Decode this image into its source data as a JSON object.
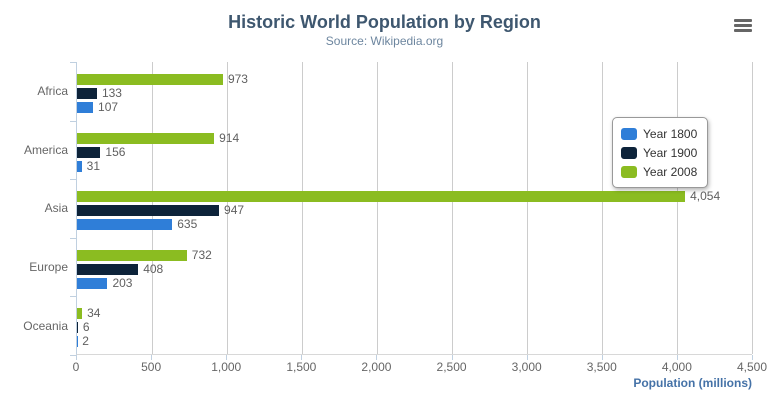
{
  "header": {
    "title": "Historic World Population by Region",
    "subtitle": "Source: Wikipedia.org"
  },
  "export_menu": {
    "icon": "hamburger-menu-icon"
  },
  "chart_data": {
    "type": "bar",
    "orientation": "horizontal",
    "title": "Historic World Population by Region",
    "subtitle": "Source: Wikipedia.org",
    "categories": [
      "Africa",
      "America",
      "Asia",
      "Europe",
      "Oceania"
    ],
    "series": [
      {
        "name": "Year 1800",
        "color": "#2f7ed8",
        "values": [
          107,
          31,
          635,
          203,
          2
        ]
      },
      {
        "name": "Year 1900",
        "color": "#0d233a",
        "values": [
          133,
          156,
          947,
          408,
          6
        ]
      },
      {
        "name": "Year 2008",
        "color": "#8bbc21",
        "values": [
          973,
          914,
          4054,
          732,
          34
        ]
      }
    ],
    "bar_display_order_top_to_bottom": [
      2,
      1,
      0
    ],
    "xlabel": "Population (millions)",
    "xlim": [
      0,
      4500
    ],
    "x_tick_step": 500,
    "x_tick_labels": [
      "0",
      "500",
      "1,000",
      "1,500",
      "2,000",
      "2,500",
      "3,000",
      "3,500",
      "4,000",
      "4,500"
    ],
    "grid": true,
    "data_labels": true,
    "legend_position": "middle-right"
  },
  "colors": {
    "title": "#3e576f",
    "subtitle": "#6d869f",
    "axis_label": "#666666",
    "data_label": "#606060",
    "axis_title": "#4572a7",
    "grid_line": "#cccccc",
    "axis_line": "#c0d0e0",
    "legend_border": "#999999",
    "legend_text": "#333333",
    "menu_icon": "#666666"
  }
}
